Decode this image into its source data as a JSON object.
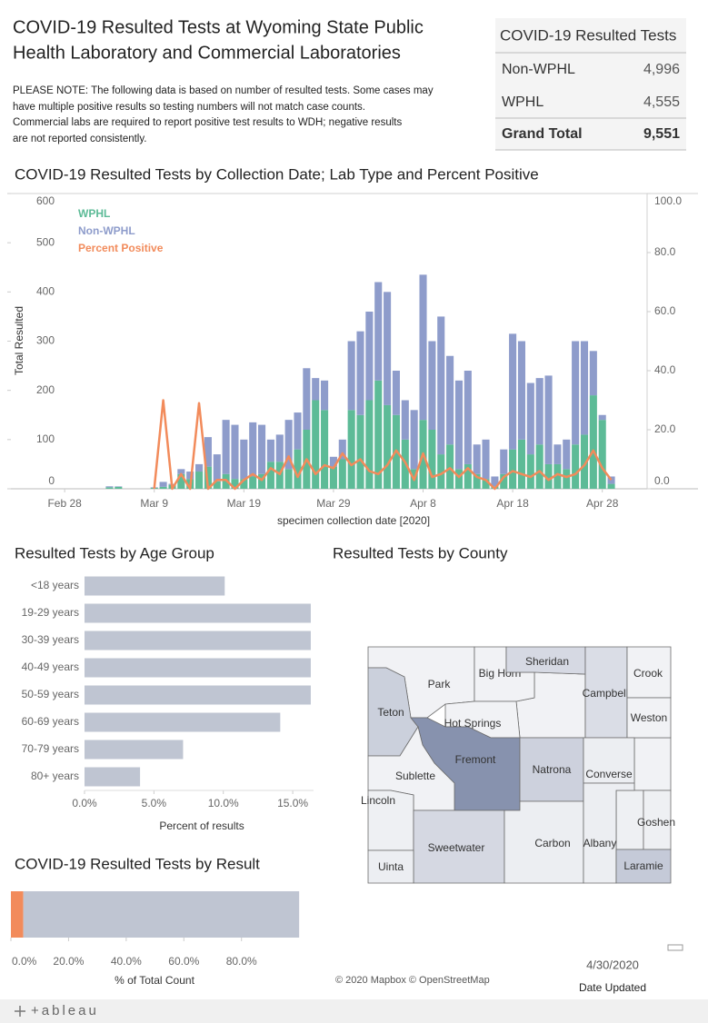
{
  "title": [
    "COVID-19 Resulted Tests at Wyoming State Public",
    "Health Laboratory and Commercial Laboratories"
  ],
  "note": [
    "PLEASE NOTE: The following data is based on number of resulted tests. Some cases may",
    "have multiple positive results so testing numbers will not match case counts.",
    "Commercial labs are required to report positive test results to WDH; negative results",
    "are not reported consistently."
  ],
  "summary": {
    "header": "COVID-19 Resulted Tests",
    "rows": [
      [
        "Non-WPHL",
        "4,996"
      ],
      [
        "WPHL",
        "4,555"
      ],
      [
        "Grand Total",
        "9,551"
      ]
    ]
  },
  "chart_data": [
    {
      "type": "bar",
      "stacked": true,
      "title": "COVID-19 Resulted Tests by Collection Date; Lab Type and Percent Positive",
      "xlabel": "specimen collection date [2020]",
      "ylabel": "Total Resulted",
      "x": [
        "2020-03-04",
        "2020-03-05",
        "2020-03-06",
        "2020-03-07",
        "2020-03-08",
        "2020-03-09",
        "2020-03-10",
        "2020-03-11",
        "2020-03-12",
        "2020-03-13",
        "2020-03-14",
        "2020-03-15",
        "2020-03-16",
        "2020-03-17",
        "2020-03-18",
        "2020-03-19",
        "2020-03-20",
        "2020-03-21",
        "2020-03-22",
        "2020-03-23",
        "2020-03-24",
        "2020-03-25",
        "2020-03-26",
        "2020-03-27",
        "2020-03-28",
        "2020-03-29",
        "2020-03-30",
        "2020-03-31",
        "2020-04-01",
        "2020-04-02",
        "2020-04-03",
        "2020-04-04",
        "2020-04-05",
        "2020-04-06",
        "2020-04-07",
        "2020-04-08",
        "2020-04-09",
        "2020-04-10",
        "2020-04-11",
        "2020-04-12",
        "2020-04-13",
        "2020-04-14",
        "2020-04-15",
        "2020-04-16",
        "2020-04-17",
        "2020-04-18",
        "2020-04-19",
        "2020-04-20",
        "2020-04-21",
        "2020-04-22",
        "2020-04-23",
        "2020-04-24",
        "2020-04-25",
        "2020-04-26",
        "2020-04-27",
        "2020-04-28",
        "2020-04-29",
        "2020-04-30"
      ],
      "series": [
        {
          "name": "WPHL",
          "color": "#5dbb97",
          "values": [
            3,
            4,
            0,
            0,
            0,
            2,
            4,
            8,
            30,
            20,
            35,
            45,
            15,
            30,
            20,
            20,
            25,
            30,
            55,
            55,
            40,
            80,
            120,
            180,
            160,
            45,
            60,
            160,
            150,
            180,
            220,
            170,
            150,
            100,
            40,
            140,
            120,
            70,
            90,
            40,
            50,
            30,
            20,
            5,
            30,
            80,
            100,
            70,
            90,
            50,
            50,
            40,
            90,
            110,
            190,
            140,
            10,
            0
          ]
        },
        {
          "name": "Non-WPHL",
          "color": "#8e9ccb",
          "values": [
            2,
            1,
            0,
            0,
            0,
            1,
            10,
            2,
            10,
            15,
            15,
            60,
            55,
            110,
            110,
            80,
            110,
            100,
            45,
            55,
            100,
            75,
            125,
            45,
            60,
            20,
            40,
            140,
            170,
            180,
            200,
            230,
            90,
            80,
            120,
            295,
            180,
            280,
            180,
            180,
            190,
            60,
            80,
            20,
            50,
            235,
            200,
            145,
            135,
            180,
            40,
            60,
            210,
            190,
            90,
            10,
            15,
            0
          ]
        },
        {
          "name": "Percent Positive",
          "color": "#f28b5b",
          "type": "line",
          "axis": "y2",
          "values": [
            null,
            null,
            null,
            null,
            null,
            0,
            30,
            0,
            5,
            0,
            29,
            0,
            3,
            3,
            0,
            3,
            5,
            3,
            7,
            5,
            11,
            4,
            10,
            5,
            8,
            7,
            12,
            8,
            10,
            6,
            5,
            8,
            13,
            9,
            3,
            12,
            4,
            5,
            7,
            4,
            7,
            4,
            3,
            0,
            4,
            6,
            5,
            4,
            6,
            3,
            5,
            4,
            5,
            8,
            13,
            7,
            3,
            null
          ]
        }
      ],
      "xlim": [
        "2020-02-22",
        "2020-05-03"
      ],
      "xticks": [
        {
          "value": "2020-02-28",
          "label": "Feb 28"
        },
        {
          "value": "2020-03-09",
          "label": "Mar 9"
        },
        {
          "value": "2020-03-19",
          "label": "Mar 19"
        },
        {
          "value": "2020-03-29",
          "label": "Mar 29"
        },
        {
          "value": "2020-04-08",
          "label": "Apr 8"
        },
        {
          "value": "2020-04-18",
          "label": "Apr 18"
        },
        {
          "value": "2020-04-28",
          "label": "Apr 28"
        }
      ],
      "ylim": [
        0,
        600
      ],
      "yticks": [
        0,
        100,
        200,
        300,
        400,
        500,
        600
      ],
      "y2lim": [
        0,
        100
      ],
      "y2ticks": [
        {
          "value": 0,
          "label": "0.0"
        },
        {
          "value": 20,
          "label": "20.0"
        },
        {
          "value": 40,
          "label": "40.0"
        },
        {
          "value": 60,
          "label": "60.0"
        },
        {
          "value": 80,
          "label": "80.0"
        },
        {
          "value": 100,
          "label": "100.0"
        }
      ],
      "legend": "top-left"
    },
    {
      "type": "bar",
      "orientation": "horizontal",
      "title": "Resulted Tests by Age Group",
      "xlabel": "Percent of results",
      "categories": [
        "<18 years",
        "19-29 years",
        "30-39 years",
        "40-49 years",
        "50-59 years",
        "60-69 years",
        "70-79 years",
        "80+ years"
      ],
      "values": [
        10.1,
        16.3,
        16.3,
        16.3,
        16.3,
        14.1,
        7.1,
        4.0
      ],
      "color": "#bfc5d2",
      "xlim": [
        0,
        16.5
      ],
      "xticks": [
        {
          "value": 0,
          "label": "0.0%"
        },
        {
          "value": 5,
          "label": "5.0%"
        },
        {
          "value": 10,
          "label": "10.0%"
        },
        {
          "value": 15,
          "label": "15.0%"
        }
      ]
    },
    {
      "type": "bar",
      "orientation": "horizontal",
      "stacked": true,
      "title": "COVID-19 Resulted Tests by Result",
      "xlabel": "% of Total Count",
      "values": [
        4.3,
        95.7
      ],
      "colors": [
        "#f28b5b",
        "#bfc5d2"
      ],
      "xlim": [
        0,
        105
      ],
      "xticks": [
        {
          "value": 0,
          "label": "0.0%"
        },
        {
          "value": 20,
          "label": "20.0%"
        },
        {
          "value": 40,
          "label": "40.0%"
        },
        {
          "value": 60,
          "label": "60.0%"
        },
        {
          "value": 80,
          "label": "80.0%"
        }
      ]
    }
  ],
  "map": {
    "title": "Resulted Tests by County",
    "attribution": "© 2020 Mapbox © OpenStreetMap",
    "counties": [
      {
        "name": "Park",
        "color": "#f1f2f5"
      },
      {
        "name": "Big Horn",
        "color": "#f1f2f5"
      },
      {
        "name": "Sheridan",
        "color": "#d6d9e3"
      },
      {
        "name": "Campbell",
        "color": "#dadde6"
      },
      {
        "name": "Crook",
        "color": "#f1f2f5"
      },
      {
        "name": "Weston",
        "color": "#f1f2f5"
      },
      {
        "name": "Teton",
        "color": "#cbd0dc"
      },
      {
        "name": "Hot Springs",
        "color": "#f1f2f5"
      },
      {
        "name": "Fremont",
        "color": "#8792ae"
      },
      {
        "name": "Natrona",
        "color": "#cdd1dd"
      },
      {
        "name": "Converse",
        "color": "#eceef2"
      },
      {
        "name": "Sublette",
        "color": "#f1f2f5"
      },
      {
        "name": "Lincoln",
        "color": "#eef0f3"
      },
      {
        "name": "Goshen",
        "color": "#eef0f3"
      },
      {
        "name": "Sweetwater",
        "color": "#d5d8e2"
      },
      {
        "name": "Carbon",
        "color": "#eceef2"
      },
      {
        "name": "Albany",
        "color": "#eceef2"
      },
      {
        "name": "Uinta",
        "color": "#eceef2"
      },
      {
        "name": "Laramie",
        "color": "#c5cad8"
      }
    ]
  },
  "date_updated": {
    "value": "4/30/2020",
    "label": "Date Updated"
  },
  "footer": "+ableau"
}
